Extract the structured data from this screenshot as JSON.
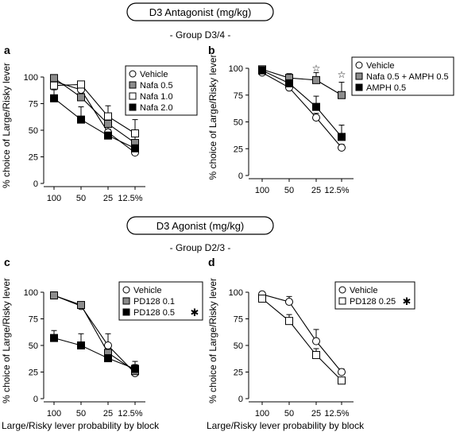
{
  "figure": {
    "sections": [
      {
        "title": "D3 Antagonist (mg/kg)",
        "subtitle": "- Group D3/4 -"
      },
      {
        "title": "D3 Agonist (mg/kg)",
        "subtitle": "- Group D2/3 -"
      }
    ],
    "shared_xlabel": "Large/Risky lever probability by block"
  },
  "chart_data": [
    {
      "panel": "a",
      "type": "line",
      "xlabel": "",
      "ylabel": "% choice of Large/Risky lever",
      "categories": [
        "100",
        "50",
        "25",
        "12.5%"
      ],
      "ylim": [
        0,
        100
      ],
      "yticks": [
        "0",
        "25",
        "50",
        "75",
        "100"
      ],
      "legend_position": "top-right",
      "series": [
        {
          "name": "Vehicle",
          "marker": "circle",
          "fill": "#ffffff",
          "values": [
            96,
            88,
            48,
            29
          ],
          "err": [
            2,
            3,
            5,
            2
          ]
        },
        {
          "name": "Nafa 0.5",
          "marker": "square",
          "fill": "#8c8c8c",
          "values": [
            99,
            81,
            56,
            38
          ],
          "err": [
            1,
            5,
            10,
            8
          ]
        },
        {
          "name": "Nafa 1.0",
          "marker": "square",
          "fill": "#ffffff",
          "values": [
            92,
            93,
            63,
            47
          ],
          "err": [
            3,
            2,
            10,
            13
          ]
        },
        {
          "name": "Nafa 2.0",
          "marker": "square",
          "fill": "#000000",
          "values": [
            80,
            60,
            45,
            33
          ],
          "err": [
            8,
            12,
            6,
            5
          ]
        }
      ],
      "annotations": []
    },
    {
      "panel": "b",
      "type": "line",
      "xlabel": "",
      "ylabel": "% choice of Large/Risky lever",
      "categories": [
        "100",
        "50",
        "25",
        "12.5%"
      ],
      "ylim": [
        0,
        100
      ],
      "yticks": [
        "0",
        "25",
        "50",
        "75",
        "100"
      ],
      "legend_position": "top-right",
      "series": [
        {
          "name": "Vehicle",
          "marker": "circle",
          "fill": "#ffffff",
          "values": [
            96,
            82,
            54,
            26
          ],
          "err": [
            2,
            3,
            4,
            3
          ]
        },
        {
          "name": "Nafa 0.5 + AMPH 0.5",
          "marker": "square",
          "fill": "#8c8c8c",
          "values": [
            99,
            91,
            89,
            75
          ],
          "err": [
            1,
            4,
            7,
            12
          ]
        },
        {
          "name": "AMPH 0.5",
          "marker": "square",
          "fill": "#000000",
          "values": [
            98,
            86,
            64,
            36
          ],
          "err": [
            2,
            6,
            10,
            11
          ]
        }
      ],
      "annotations": [
        {
          "x": "25",
          "y": 100,
          "symbol": "☆"
        },
        {
          "x": "12.5%",
          "y": 94,
          "symbol": "☆"
        }
      ]
    },
    {
      "panel": "c",
      "type": "line",
      "xlabel": "Large/Risky lever probability by block",
      "ylabel": "% choice of Large/Risky lever",
      "categories": [
        "100",
        "50",
        "25",
        "12.5%"
      ],
      "ylim": [
        0,
        100
      ],
      "yticks": [
        "0",
        "25",
        "50",
        "75",
        "100"
      ],
      "legend_position": "top-right",
      "series": [
        {
          "name": "Vehicle",
          "marker": "circle",
          "fill": "#ffffff",
          "values": [
            97,
            87,
            50,
            24
          ],
          "err": [
            2,
            3,
            11,
            5
          ]
        },
        {
          "name": "PD128 0.1",
          "marker": "square",
          "fill": "#8c8c8c",
          "values": [
            97,
            88,
            43,
            26
          ],
          "err": [
            2,
            3,
            6,
            6
          ]
        },
        {
          "name": "PD128 0.5",
          "marker": "square",
          "fill": "#000000",
          "values": [
            57,
            50,
            38,
            28
          ],
          "err": [
            7,
            11,
            3,
            7
          ],
          "marked": "✱"
        }
      ],
      "annotations": []
    },
    {
      "panel": "d",
      "type": "line",
      "xlabel": "Large/Risky lever probability by block",
      "ylabel": "% choice of Large/Risky lever",
      "categories": [
        "100",
        "50",
        "25",
        "12.5%"
      ],
      "ylim": [
        0,
        100
      ],
      "yticks": [
        "0",
        "25",
        "50",
        "75",
        "100"
      ],
      "legend_position": "top-left",
      "series": [
        {
          "name": "Vehicle",
          "marker": "circle",
          "fill": "#ffffff",
          "values": [
            98,
            91,
            54,
            25
          ],
          "err": [
            2,
            5,
            11,
            3
          ]
        },
        {
          "name": "PD128 0.25",
          "marker": "square",
          "fill": "#ffffff",
          "values": [
            94,
            73,
            41,
            17
          ],
          "err": [
            3,
            6,
            6,
            3
          ],
          "marked": "✱"
        }
      ],
      "annotations": []
    }
  ]
}
